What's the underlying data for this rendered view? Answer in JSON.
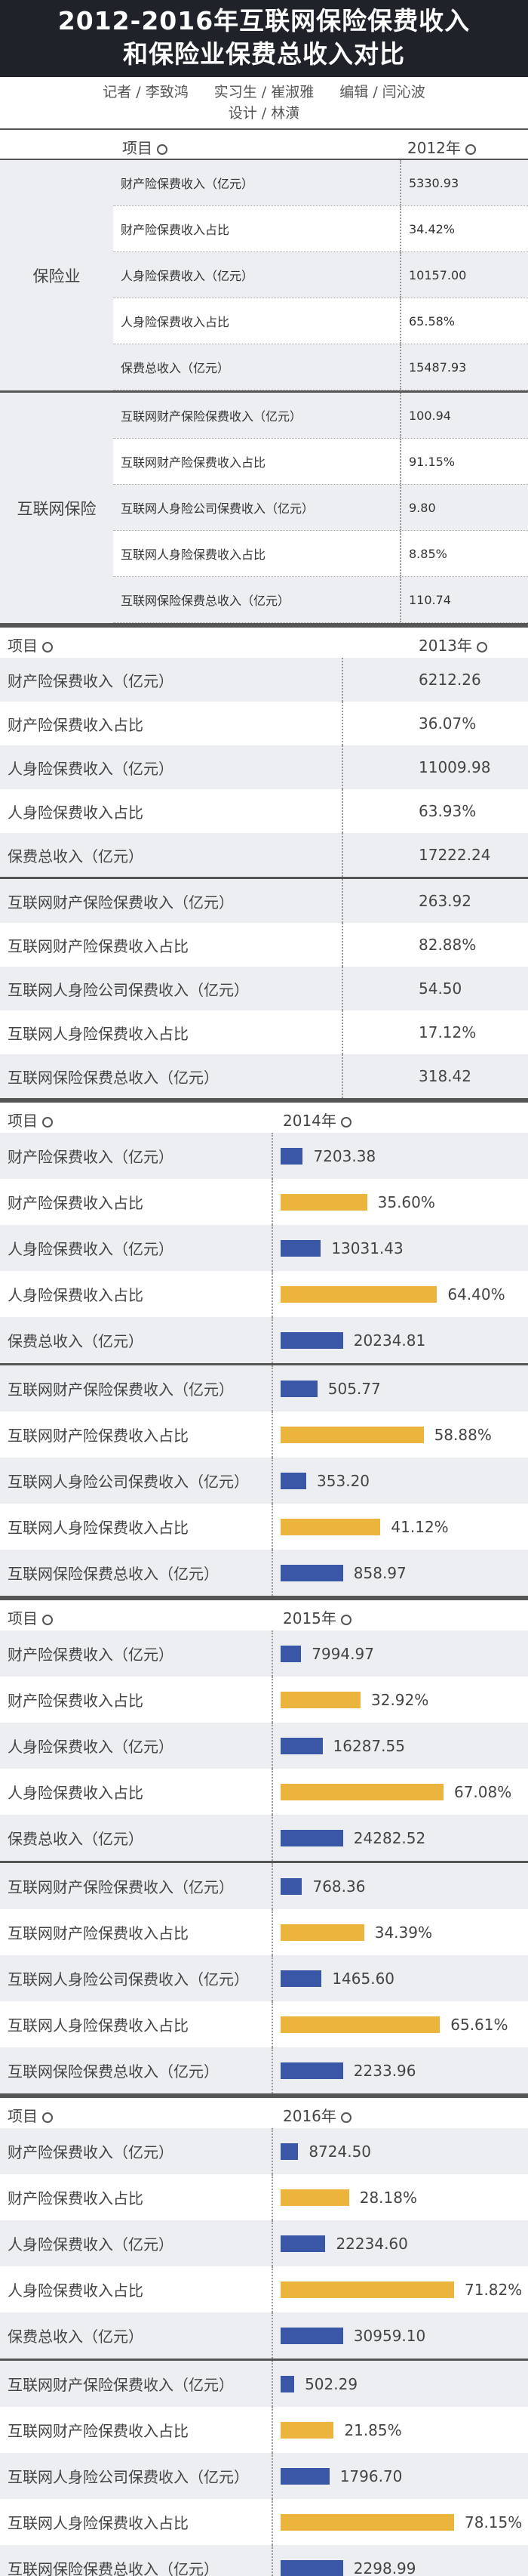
{
  "title_line1": "2012-2016年互联网保险保费收入",
  "title_line2": "和保险业保费总收入对比",
  "credits": {
    "reporter": "记者 / 李致鸿",
    "intern": "实习生 / 崔淑雅",
    "editor": "编辑 / 闫沁波",
    "design": "设计 / 林潢"
  },
  "item_label": "项目",
  "colors": {
    "blue": "#3a57a7",
    "gold": "#eab43d",
    "dark": "#1f2229"
  },
  "y2012": {
    "year": "2012年",
    "group1_name": "保险业",
    "group2_name": "互联网保险",
    "rows1": [
      {
        "label": "财产险保费收入（亿元）",
        "value": "5330.93"
      },
      {
        "label": "财产险保费收入占比",
        "value": "34.42%"
      },
      {
        "label": "人身险保费收入（亿元）",
        "value": "10157.00"
      },
      {
        "label": "人身险保费收入占比",
        "value": "65.58%"
      },
      {
        "label": "保费总收入（亿元）",
        "value": "15487.93"
      }
    ],
    "rows2": [
      {
        "label": "互联网财产保险保费收入（亿元）",
        "value": "100.94"
      },
      {
        "label": "互联网财产险保费收入占比",
        "value": "91.15%"
      },
      {
        "label": "互联网人身险公司保费收入（亿元）",
        "value": "9.80"
      },
      {
        "label": "互联网人身险保费收入占比",
        "value": "8.85%"
      },
      {
        "label": "互联网保险保费总收入（亿元）",
        "value": "110.74"
      }
    ]
  },
  "y2013": {
    "year": "2013年",
    "rows1": [
      {
        "label": "财产险保费收入（亿元）",
        "value": "6212.26"
      },
      {
        "label": "财产险保费收入占比",
        "value": "36.07%"
      },
      {
        "label": "人身险保费收入（亿元）",
        "value": "11009.98"
      },
      {
        "label": "人身险保费收入占比",
        "value": "63.93%"
      },
      {
        "label": "保费总收入（亿元）",
        "value": "17222.24"
      }
    ],
    "rows2": [
      {
        "label": "互联网财产保险保费收入（亿元）",
        "value": "263.92"
      },
      {
        "label": "互联网财产险保费收入占比",
        "value": "82.88%"
      },
      {
        "label": "互联网人身险公司保费收入（亿元）",
        "value": "54.50"
      },
      {
        "label": "互联网人身险保费收入占比",
        "value": "17.12%"
      },
      {
        "label": "互联网保险保费总收入（亿元）",
        "value": "318.42"
      }
    ]
  },
  "bar_years": [
    {
      "year": "2014年",
      "rows1": [
        {
          "label": "财产险保费收入（亿元）",
          "value": "7203.38",
          "num": 7203.38,
          "kind": "amount"
        },
        {
          "label": "财产险保费收入占比",
          "value": "35.60%",
          "num": 35.6,
          "kind": "pct"
        },
        {
          "label": "人身险保费收入（亿元）",
          "value": "13031.43",
          "num": 13031.43,
          "kind": "amount"
        },
        {
          "label": "人身险保费收入占比",
          "value": "64.40%",
          "num": 64.4,
          "kind": "pct"
        },
        {
          "label": "保费总收入（亿元）",
          "value": "20234.81",
          "num": 20234.81,
          "kind": "amount"
        }
      ],
      "rows2": [
        {
          "label": "互联网财产保险保费收入（亿元）",
          "value": "505.77",
          "num": 505.77,
          "kind": "amount"
        },
        {
          "label": "互联网财产险保费收入占比",
          "value": "58.88%",
          "num": 58.88,
          "kind": "pct"
        },
        {
          "label": "互联网人身险公司保费收入（亿元）",
          "value": "353.20",
          "num": 353.2,
          "kind": "amount"
        },
        {
          "label": "互联网人身险保费收入占比",
          "value": "41.12%",
          "num": 41.12,
          "kind": "pct"
        },
        {
          "label": "互联网保险保费总收入（亿元）",
          "value": "858.97",
          "num": 858.97,
          "kind": "amount"
        }
      ]
    },
    {
      "year": "2015年",
      "rows1": [
        {
          "label": "财产险保费收入（亿元）",
          "value": "7994.97",
          "num": 7994.97,
          "kind": "amount"
        },
        {
          "label": "财产险保费收入占比",
          "value": "32.92%",
          "num": 32.92,
          "kind": "pct"
        },
        {
          "label": "人身险保费收入（亿元）",
          "value": "16287.55",
          "num": 16287.55,
          "kind": "amount"
        },
        {
          "label": "人身险保费收入占比",
          "value": "67.08%",
          "num": 67.08,
          "kind": "pct"
        },
        {
          "label": "保费总收入（亿元）",
          "value": "24282.52",
          "num": 24282.52,
          "kind": "amount"
        }
      ],
      "rows2": [
        {
          "label": "互联网财产保险保费收入（亿元）",
          "value": "768.36",
          "num": 768.36,
          "kind": "amount"
        },
        {
          "label": "互联网财产险保费收入占比",
          "value": "34.39%",
          "num": 34.39,
          "kind": "pct"
        },
        {
          "label": "互联网人身险公司保费收入（亿元）",
          "value": "1465.60",
          "num": 1465.6,
          "kind": "amount"
        },
        {
          "label": "互联网人身险保费收入占比",
          "value": "65.61%",
          "num": 65.61,
          "kind": "pct"
        },
        {
          "label": "互联网保险保费总收入（亿元）",
          "value": "2233.96",
          "num": 2233.96,
          "kind": "amount"
        }
      ]
    },
    {
      "year": "2016年",
      "rows1": [
        {
          "label": "财产险保费收入（亿元）",
          "value": "8724.50",
          "num": 8724.5,
          "kind": "amount"
        },
        {
          "label": "财产险保费收入占比",
          "value": "28.18%",
          "num": 28.18,
          "kind": "pct"
        },
        {
          "label": "人身险保费收入（亿元）",
          "value": "22234.60",
          "num": 22234.6,
          "kind": "amount"
        },
        {
          "label": "人身险保费收入占比",
          "value": "71.82%",
          "num": 71.82,
          "kind": "pct"
        },
        {
          "label": "保费总收入（亿元）",
          "value": "30959.10",
          "num": 30959.1,
          "kind": "amount"
        }
      ],
      "rows2": [
        {
          "label": "互联网财产保险保费收入（亿元）",
          "value": "502.29",
          "num": 502.29,
          "kind": "amount"
        },
        {
          "label": "互联网财产险保费收入占比",
          "value": "21.85%",
          "num": 21.85,
          "kind": "pct"
        },
        {
          "label": "互联网人身险公司保费收入（亿元）",
          "value": "1796.70",
          "num": 1796.7,
          "kind": "amount"
        },
        {
          "label": "互联网人身险保费收入占比",
          "value": "78.15%",
          "num": 78.15,
          "kind": "pct"
        },
        {
          "label": "互联网保险保费总收入（亿元）",
          "value": "2298.99",
          "num": 2298.99,
          "kind": "amount"
        }
      ]
    }
  ]
}
